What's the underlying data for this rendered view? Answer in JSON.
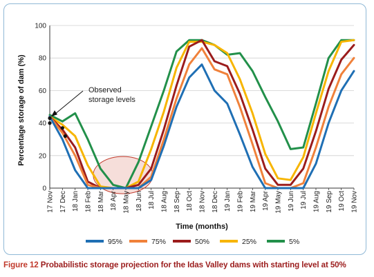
{
  "chart_data": {
    "type": "line",
    "title": "",
    "xlabel": "Time (months)",
    "ylabel": "Percentage storage of dam (%)",
    "ylim": [
      0,
      100
    ],
    "yticks": [
      0,
      20,
      40,
      60,
      80,
      100
    ],
    "grid": true,
    "legend_position": "bottom",
    "categories": [
      "17 Nov",
      "17 Dec",
      "18 Jan",
      "18 Feb",
      "18 Mar",
      "18 Apr",
      "18 May",
      "18 Jun",
      "18 Jul",
      "18 Aug",
      "18 Sep",
      "18 Oct",
      "18 Nov",
      "18 Dec",
      "19 Jan",
      "19 Feb",
      "19 Mar",
      "19 Apr",
      "19 May",
      "19 Jun",
      "19 Jul",
      "19 Aug",
      "19 Sep",
      "19 Oct",
      "19 Nov"
    ],
    "series": [
      {
        "name": "95%",
        "color": "#1f6fb4",
        "values": [
          44,
          30,
          11,
          0,
          0,
          0,
          0,
          0,
          5,
          26,
          50,
          68,
          76,
          60,
          52,
          33,
          13,
          0,
          0,
          0,
          0,
          15,
          40,
          60,
          72
        ]
      },
      {
        "name": "75%",
        "color": "#f0813a",
        "values": [
          44,
          34,
          20,
          2,
          0,
          0,
          0,
          0,
          7,
          30,
          55,
          76,
          86,
          73,
          70,
          50,
          27,
          3,
          0,
          0,
          3,
          25,
          50,
          70,
          80
        ]
      },
      {
        "name": "50%",
        "color": "#9b1c1c",
        "values": [
          44,
          36,
          25,
          4,
          0,
          0,
          0,
          2,
          12,
          36,
          63,
          87,
          91,
          78,
          75,
          58,
          36,
          12,
          2,
          2,
          12,
          35,
          61,
          79,
          88
        ]
      },
      {
        "name": "25%",
        "color": "#f7b500",
        "values": [
          44,
          39,
          32,
          14,
          1,
          0,
          0,
          4,
          24,
          47,
          74,
          90,
          90,
          88,
          83,
          67,
          46,
          21,
          6,
          5,
          19,
          46,
          72,
          90,
          91
        ]
      },
      {
        "name": "5%",
        "color": "#22904a",
        "values": [
          45,
          41,
          46,
          30,
          12,
          2,
          0,
          16,
          38,
          60,
          84,
          91,
          91,
          88,
          82,
          83,
          72,
          56,
          41,
          24,
          25,
          52,
          80,
          91,
          91
        ]
      }
    ],
    "observed": {
      "label": "Observed storage levels",
      "points": [
        {
          "x": "17 Nov",
          "y": 43
        },
        {
          "x": "17 Nov",
          "y": 40
        },
        {
          "x": "17 Dec",
          "y": 37
        },
        {
          "x": "17 Dec",
          "y": 32
        }
      ]
    }
  },
  "caption": {
    "figure_label": "Figure 12",
    "text": " Probabilistic storage projection for the Idas Valley dams with starting level at 50%"
  }
}
